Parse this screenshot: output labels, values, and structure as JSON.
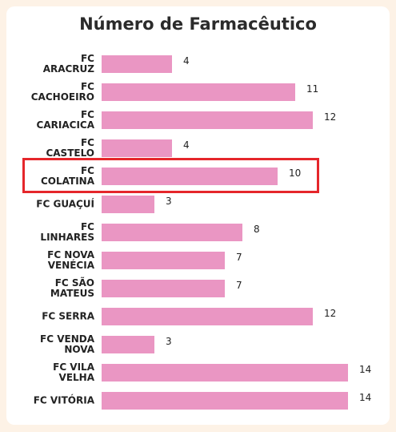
{
  "chart_data": {
    "type": "bar",
    "orientation": "horizontal",
    "title": "Número de Farmacêutico",
    "categories": [
      "FC\nARACRUZ",
      "FC\nCACHOEIRO",
      "FC\nCARIACICA",
      "FC\nCASTELO",
      "FC\nCOLATINA",
      "FC GUAÇUÍ",
      "FC\nLINHARES",
      "FC NOVA\nVENÉCIA",
      "FC SÃO\nMATEUS",
      "FC SERRA",
      "FC VENDA\nNOVA",
      "FC VILA\nVELHA",
      "FC VITÓRIA"
    ],
    "values": [
      4,
      11,
      12,
      4,
      10,
      3,
      8,
      7,
      7,
      12,
      3,
      14,
      14
    ],
    "color": "#ea96c3"
  }
}
